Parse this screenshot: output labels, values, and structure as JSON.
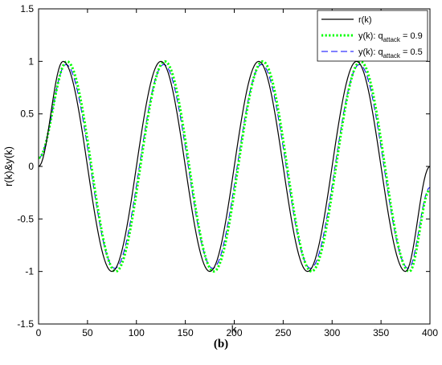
{
  "caption": "(b)",
  "chart_data": {
    "type": "line",
    "xlabel": "k",
    "ylabel": "r(k)&y(k)",
    "xlim": [
      0,
      400
    ],
    "ylim": [
      -1.5,
      1.5
    ],
    "xticks": [
      0,
      50,
      100,
      150,
      200,
      250,
      300,
      350,
      400
    ],
    "yticks": [
      -1.5,
      -1,
      -0.5,
      0,
      0.5,
      1,
      1.5
    ],
    "xtick_labels": [
      "0",
      "50",
      "100",
      "150",
      "200",
      "250",
      "300",
      "350",
      "400"
    ],
    "ytick_labels": [
      "-1.5",
      "-1",
      "-0.5",
      "0",
      "0.5",
      "1",
      "1.5"
    ],
    "grid": false,
    "legend_position": "top-right",
    "series": [
      {
        "name": "r(k)",
        "legend": {
          "main": "r(k)",
          "sub": "",
          "suffix": ""
        },
        "color": "#000000",
        "style": "solid",
        "x": [
          0,
          25,
          75,
          125,
          175,
          225,
          275,
          325,
          375,
          400
        ],
        "y": [
          0,
          1,
          -1,
          1,
          -1,
          1,
          -1,
          1,
          -1,
          0
        ]
      },
      {
        "name": "y(k): q_attack = 0.9",
        "legend": {
          "main": "y(k): q",
          "sub": "attack",
          "suffix": " = 0.9"
        },
        "color": "#00ff00",
        "style": "dotted",
        "x": [
          0,
          29,
          79,
          129,
          179,
          229,
          279,
          329,
          379,
          400
        ],
        "y": [
          0.08,
          1,
          -1,
          1,
          -1,
          1,
          -1,
          1,
          -1,
          -0.22
        ]
      },
      {
        "name": "y(k): q_attack = 0.5",
        "legend": {
          "main": "y(k): q",
          "sub": "attack",
          "suffix": " = 0.5"
        },
        "color": "#0000ff",
        "style": "dashed",
        "x": [
          0,
          28,
          78,
          128,
          178,
          228,
          278,
          328,
          378,
          400
        ],
        "y": [
          0.08,
          0.97,
          -0.97,
          0.97,
          -0.97,
          0.97,
          -0.97,
          0.97,
          -0.97,
          -0.2
        ]
      }
    ]
  }
}
